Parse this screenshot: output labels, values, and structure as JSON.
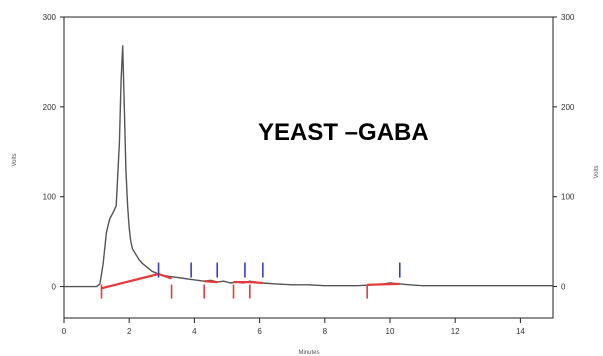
{
  "chart_data": {
    "type": "line",
    "title": "",
    "annotation": "YEAST –GABA",
    "xlabel": "Minutes",
    "ylabel": "Volts",
    "ylabel_right": "Volts",
    "xlim": [
      0,
      15
    ],
    "ylim": [
      -35,
      300
    ],
    "x_ticks": [
      0,
      2,
      4,
      6,
      8,
      10,
      12,
      14
    ],
    "y_ticks": [
      0,
      100,
      200,
      300
    ],
    "grid": false,
    "colors": {
      "trace": "#555555",
      "baseline": "#e63a3a",
      "marker": "#3b3bd8",
      "axis": "#222222"
    },
    "series": [
      {
        "x": [
          0.0,
          1.0,
          1.1,
          1.2,
          1.3,
          1.4,
          1.5,
          1.6,
          1.7,
          1.75,
          1.8,
          1.85,
          1.9,
          1.95,
          2.0,
          2.05,
          2.1,
          2.2,
          2.3,
          2.4,
          2.5,
          2.7,
          2.9,
          3.1,
          3.3,
          3.5,
          3.7,
          3.9,
          4.1,
          4.3,
          4.5,
          4.7,
          4.9,
          5.1,
          5.3,
          5.5,
          5.7,
          5.9,
          6.1,
          6.5,
          7.0,
          7.5,
          8.0,
          8.5,
          9.0,
          9.5,
          9.8,
          10.0,
          10.3,
          10.6,
          11.0,
          12.0,
          13.0,
          14.0,
          15.0
        ],
        "y": [
          0,
          0,
          3,
          25,
          60,
          75,
          82,
          90,
          160,
          230,
          268,
          200,
          130,
          90,
          65,
          50,
          42,
          36,
          30,
          26,
          23,
          17,
          14,
          12,
          11,
          10,
          9,
          8,
          7,
          6,
          7,
          5,
          6,
          4,
          5,
          4,
          6,
          5,
          4,
          3,
          2,
          2,
          1,
          1,
          1,
          2,
          3,
          4,
          3,
          2,
          1,
          1,
          1,
          1,
          1
        ]
      }
    ],
    "baselines": [
      {
        "x": [
          1.15,
          2.9
        ],
        "y": [
          -2,
          14
        ]
      },
      {
        "x": [
          2.9,
          3.3
        ],
        "y": [
          14,
          9
        ]
      },
      {
        "x": [
          4.3,
          4.7
        ],
        "y": [
          6,
          5
        ]
      },
      {
        "x": [
          5.2,
          5.7
        ],
        "y": [
          5,
          5
        ]
      },
      {
        "x": [
          5.7,
          6.1
        ],
        "y": [
          5,
          4
        ]
      },
      {
        "x": [
          9.3,
          10.3
        ],
        "y": [
          2,
          3
        ]
      }
    ],
    "start_markers": [
      1.15,
      3.3,
      4.3,
      5.2,
      5.7,
      9.3
    ],
    "end_markers": [
      2.9,
      3.9,
      4.7,
      5.55,
      6.1,
      10.3
    ]
  }
}
